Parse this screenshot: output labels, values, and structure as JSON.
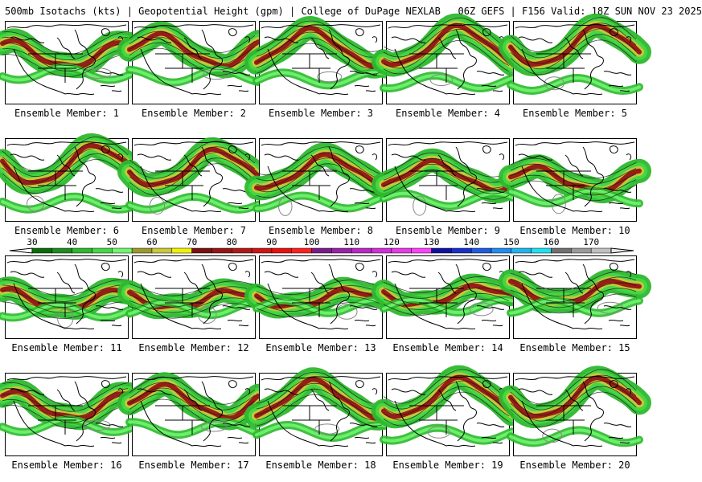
{
  "header": {
    "title": "500mb Isotachs (kts) | Geopotential Height (gpm) | College of DuPage NEXLAB   06Z GEFS | F156 Valid: 18Z SUN NOV 23 2025"
  },
  "colors": {
    "land_fill": "#ffffff",
    "coast": "#000000",
    "height_contour": "#1a1a1a",
    "gray_contour": "#888888"
  },
  "members": [
    {
      "label": "Ensemble Member: 1"
    },
    {
      "label": "Ensemble Member: 2"
    },
    {
      "label": "Ensemble Member: 3"
    },
    {
      "label": "Ensemble Member: 4"
    },
    {
      "label": "Ensemble Member: 5"
    },
    {
      "label": "Ensemble Member: 6"
    },
    {
      "label": "Ensemble Member: 7"
    },
    {
      "label": "Ensemble Member: 8"
    },
    {
      "label": "Ensemble Member: 9"
    },
    {
      "label": "Ensemble Member: 10"
    },
    {
      "label": "Ensemble Member: 11"
    },
    {
      "label": "Ensemble Member: 12"
    },
    {
      "label": "Ensemble Member: 13"
    },
    {
      "label": "Ensemble Member: 14"
    },
    {
      "label": "Ensemble Member: 15"
    },
    {
      "label": "Ensemble Member: 16"
    },
    {
      "label": "Ensemble Member: 17"
    },
    {
      "label": "Ensemble Member: 18"
    },
    {
      "label": "Ensemble Member: 19"
    },
    {
      "label": "Ensemble Member: 20"
    }
  ],
  "legend": {
    "units": "kts",
    "labels": [
      "30",
      "40",
      "50",
      "60",
      "70",
      "80",
      "90",
      "100",
      "110",
      "120",
      "130",
      "140",
      "150",
      "160",
      "170"
    ],
    "bins": [
      {
        "from": 30,
        "to": 35,
        "color": "#0a6b0a"
      },
      {
        "from": 35,
        "to": 40,
        "color": "#1e8c1e"
      },
      {
        "from": 40,
        "to": 45,
        "color": "#2eb82e"
      },
      {
        "from": 45,
        "to": 50,
        "color": "#44d844"
      },
      {
        "from": 50,
        "to": 55,
        "color": "#6ff56f"
      },
      {
        "from": 55,
        "to": 60,
        "color": "#9a9a2a"
      },
      {
        "from": 60,
        "to": 65,
        "color": "#c8c83a"
      },
      {
        "from": 65,
        "to": 70,
        "color": "#f2f200"
      },
      {
        "from": 70,
        "to": 75,
        "color": "#7a1010"
      },
      {
        "from": 75,
        "to": 80,
        "color": "#961414"
      },
      {
        "from": 80,
        "to": 85,
        "color": "#b01818"
      },
      {
        "from": 85,
        "to": 90,
        "color": "#cc1414"
      },
      {
        "from": 90,
        "to": 95,
        "color": "#e81010"
      },
      {
        "from": 95,
        "to": 100,
        "color": "#ff2020"
      },
      {
        "from": 100,
        "to": 105,
        "color": "#7a1a8a"
      },
      {
        "from": 105,
        "to": 110,
        "color": "#9a20a8"
      },
      {
        "from": 110,
        "to": 115,
        "color": "#b828c4"
      },
      {
        "from": 115,
        "to": 120,
        "color": "#d030d8"
      },
      {
        "from": 120,
        "to": 125,
        "color": "#e838e8"
      },
      {
        "from": 125,
        "to": 130,
        "color": "#ff40ff"
      },
      {
        "from": 130,
        "to": 135,
        "color": "#1010a0"
      },
      {
        "from": 135,
        "to": 140,
        "color": "#1830c8"
      },
      {
        "from": 140,
        "to": 145,
        "color": "#1f5ae0"
      },
      {
        "from": 145,
        "to": 150,
        "color": "#1f8cf0"
      },
      {
        "from": 150,
        "to": 155,
        "color": "#1fb4f0"
      },
      {
        "from": 155,
        "to": 160,
        "color": "#20e0f0"
      },
      {
        "from": 160,
        "to": 165,
        "color": "#707070"
      },
      {
        "from": 165,
        "to": 170,
        "color": "#9a9a9a"
      },
      {
        "from": 170,
        "to": 175,
        "color": "#c0c0c0"
      }
    ]
  }
}
